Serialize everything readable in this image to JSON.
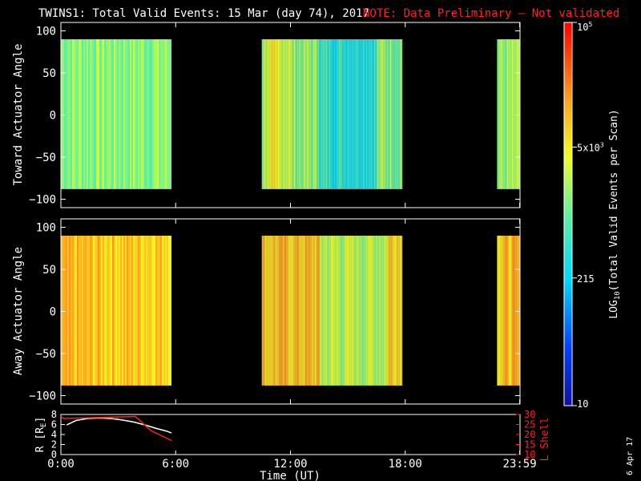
{
  "title": {
    "main": "TWINS1: Total Valid Events: 15 Mar (day  74), 2017",
    "note": "NOTE: Data Preliminary — Not validated"
  },
  "stamp": "6 Apr 17",
  "colors": {
    "note": "#ff2020",
    "lshell": "#ff2020",
    "radius": "#ffffff",
    "background": "#000000"
  },
  "chart_data": [
    {
      "type": "heatmap",
      "panel": "toward",
      "ylabel": "Toward Actuator Angle",
      "ylim": [
        -110,
        110
      ],
      "yticks": [
        "100",
        "50",
        "0",
        "−50",
        "−100"
      ],
      "ytick_values": [
        100,
        50,
        0,
        -50,
        -100
      ],
      "data_coverage_hours": [
        [
          0.0,
          5.78
        ],
        [
          10.5,
          17.85
        ],
        [
          22.8,
          24.0
        ]
      ],
      "angle_range": [
        -88,
        90
      ],
      "typical_level": "green-cyan (~2x10^3 events)"
    },
    {
      "type": "heatmap",
      "panel": "away",
      "ylabel": "Away Actuator Angle",
      "ylim": [
        -110,
        110
      ],
      "yticks": [
        "100",
        "50",
        "0",
        "−50",
        "−100"
      ],
      "ytick_values": [
        100,
        50,
        0,
        -50,
        -100
      ],
      "data_coverage_hours": [
        [
          0.0,
          5.78
        ],
        [
          10.5,
          17.85
        ],
        [
          22.8,
          24.0
        ]
      ],
      "angle_range": [
        -88,
        90
      ],
      "typical_level": "orange-yellow (~1.5x10^4 events)"
    },
    {
      "type": "line",
      "panel": "orbit",
      "ylabel_left": "R [R",
      "ylabel_left_sub": "E",
      "ylabel_left_end": "]",
      "ylabel_right": "L Shell",
      "ylim_left": [
        0,
        8
      ],
      "ylim_right": [
        10,
        30
      ],
      "yticks_left": [
        "8",
        "6",
        "4",
        "2",
        "0"
      ],
      "yticks_right": [
        "30",
        "25",
        "20",
        "15",
        "10"
      ],
      "series": [
        {
          "name": "",
          "axis": "left",
          "x": [
            0.3,
            0.8,
            1.4,
            2.0,
            2.6,
            3.2,
            3.8,
            4.4,
            5.0,
            5.5,
            5.78
          ],
          "y": [
            5.9,
            6.8,
            7.2,
            7.3,
            7.2,
            6.9,
            6.5,
            5.9,
            5.2,
            4.7,
            4.3
          ]
        },
        {
          "name": "",
          "axis": "right",
          "x": [
            0.0,
            0.15,
            3.9,
            4.7,
            5.78
          ],
          "y": [
            29,
            28,
            29,
            22,
            17
          ]
        }
      ]
    }
  ],
  "xaxis": {
    "label": "Time (UT)",
    "xlim": [
      0,
      24
    ],
    "ticks": [
      "0:00",
      "6:00",
      "12:00",
      "18:00",
      "23:59"
    ],
    "tick_values": [
      0,
      6,
      12,
      18,
      23.983
    ]
  },
  "colorbar": {
    "label": "LOG",
    "label_sub": "10",
    "label_rest": "(Total Valid Events per Scan)",
    "range": [
      10,
      100000
    ],
    "tick_labels": [
      {
        "base": "10",
        "sup": "5",
        "value": 100000
      },
      {
        "base": "5x10",
        "sup": "3",
        "value": 5000
      },
      {
        "base": "215",
        "sup": "",
        "value": 215
      },
      {
        "base": "10",
        "sup": "",
        "value": 10
      }
    ]
  }
}
